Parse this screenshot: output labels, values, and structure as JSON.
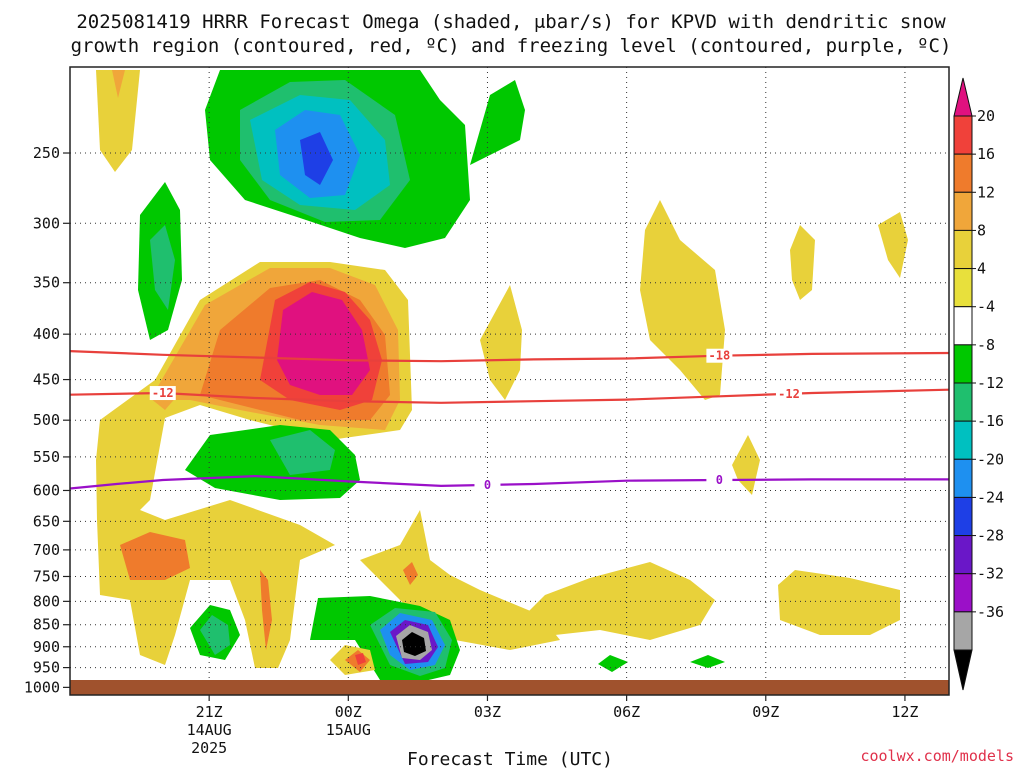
{
  "chart_data": {
    "type": "heatmap",
    "title": "2025081419 HRRR Forecast Omega (shaded, μbar/s) for KPVD with dendritic snow",
    "subtitle": "growth region (contoured, red, ºC) and freezing level (contoured, purple, ºC)",
    "xlabel": "Forecast Time (UTC)",
    "ylabel": "",
    "x_ticks": [
      {
        "label": "21Z",
        "sub": [
          "14AUG",
          "2025"
        ]
      },
      {
        "label": "00Z",
        "sub": [
          "15AUG"
        ]
      },
      {
        "label": "03Z",
        "sub": []
      },
      {
        "label": "06Z",
        "sub": []
      },
      {
        "label": "09Z",
        "sub": []
      },
      {
        "label": "12Z",
        "sub": []
      }
    ],
    "x_hours": [
      21,
      24,
      27,
      30,
      33,
      36
    ],
    "xlim": [
      18.0,
      36.95
    ],
    "y_ticks": [
      250,
      300,
      350,
      400,
      450,
      500,
      550,
      600,
      650,
      700,
      750,
      800,
      850,
      900,
      950,
      1000
    ],
    "ylim": [
      200,
      1020
    ],
    "yscale": "log-pressure",
    "colorbar": {
      "labels": [
        "20",
        "16",
        "12",
        "8",
        "4",
        "-4",
        "-8",
        "-12",
        "-16",
        "-20",
        "-24",
        "-28",
        "-32",
        "-36"
      ],
      "colors": [
        "#e0117f",
        "#f0413a",
        "#ef7b2c",
        "#f0a63a",
        "#e8d13a",
        "#e8e03c",
        "#ffffff",
        "#00c800",
        "#1fbf6e",
        "#00c0c0",
        "#1e90f0",
        "#1e3fe6",
        "#6a17c8",
        "#9b10c8",
        "#a6a6a6",
        "#000000"
      ]
    },
    "contours": [
      {
        "name": "snow-18",
        "label": "-18",
        "color": "#e8403c",
        "x": [
          18,
          20,
          22,
          24,
          26,
          28,
          30,
          32,
          34,
          36.95
        ],
        "y": [
          418,
          422,
          425,
          428,
          429,
          427,
          426,
          423,
          421,
          420
        ]
      },
      {
        "name": "snow-12",
        "label": "-12",
        "color": "#e8403c",
        "x": [
          18,
          20,
          22,
          24,
          26,
          28,
          30,
          32,
          34,
          36.95
        ],
        "y": [
          468,
          466,
          472,
          476,
          478,
          476,
          474,
          470,
          466,
          462
        ]
      },
      {
        "name": "freezing-0",
        "label": "0",
        "color": "#9a10c8",
        "x": [
          18,
          19,
          20,
          22,
          24,
          26,
          28,
          30,
          32,
          34,
          36.95
        ],
        "y": [
          597,
          590,
          584,
          578,
          586,
          593,
          590,
          585,
          584,
          583,
          583
        ]
      }
    ],
    "credit": "coolwx.com/models"
  }
}
